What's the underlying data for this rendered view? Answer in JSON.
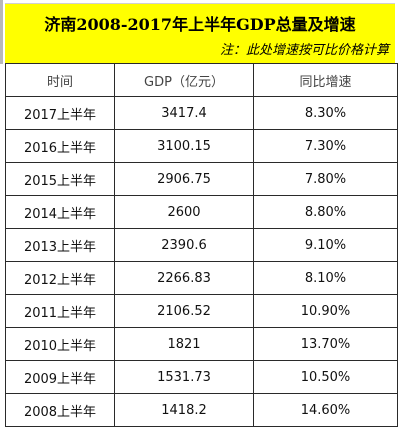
{
  "title": "济南2008-2017年上半年GDP总量及增速",
  "note": "注：此处增速按可比价格计算",
  "columns": [
    "时间",
    "GDP（亿元）",
    "同比增速"
  ],
  "rows": [
    {
      "period": "2017上半年",
      "gdp": "3417.4",
      "growth": "8.30%"
    },
    {
      "period": "2016上半年",
      "gdp": "3100.15",
      "growth": "7.30%"
    },
    {
      "period": "2015上半年",
      "gdp": "2906.75",
      "growth": "7.80%"
    },
    {
      "period": "2014上半年",
      "gdp": "2600",
      "growth": "8.80%"
    },
    {
      "period": "2013上半年",
      "gdp": "2390.6",
      "growth": "9.10%"
    },
    {
      "period": "2012上半年",
      "gdp": "2266.83",
      "growth": "8.10%"
    },
    {
      "period": "2011上半年",
      "gdp": "2106.52",
      "growth": "10.90%"
    },
    {
      "period": "2010上半年",
      "gdp": "1821",
      "growth": "13.70%"
    },
    {
      "period": "2009上半年",
      "gdp": "1531.73",
      "growth": "10.50%"
    },
    {
      "period": "2008上半年",
      "gdp": "1418.2",
      "growth": "14.60%"
    }
  ]
}
